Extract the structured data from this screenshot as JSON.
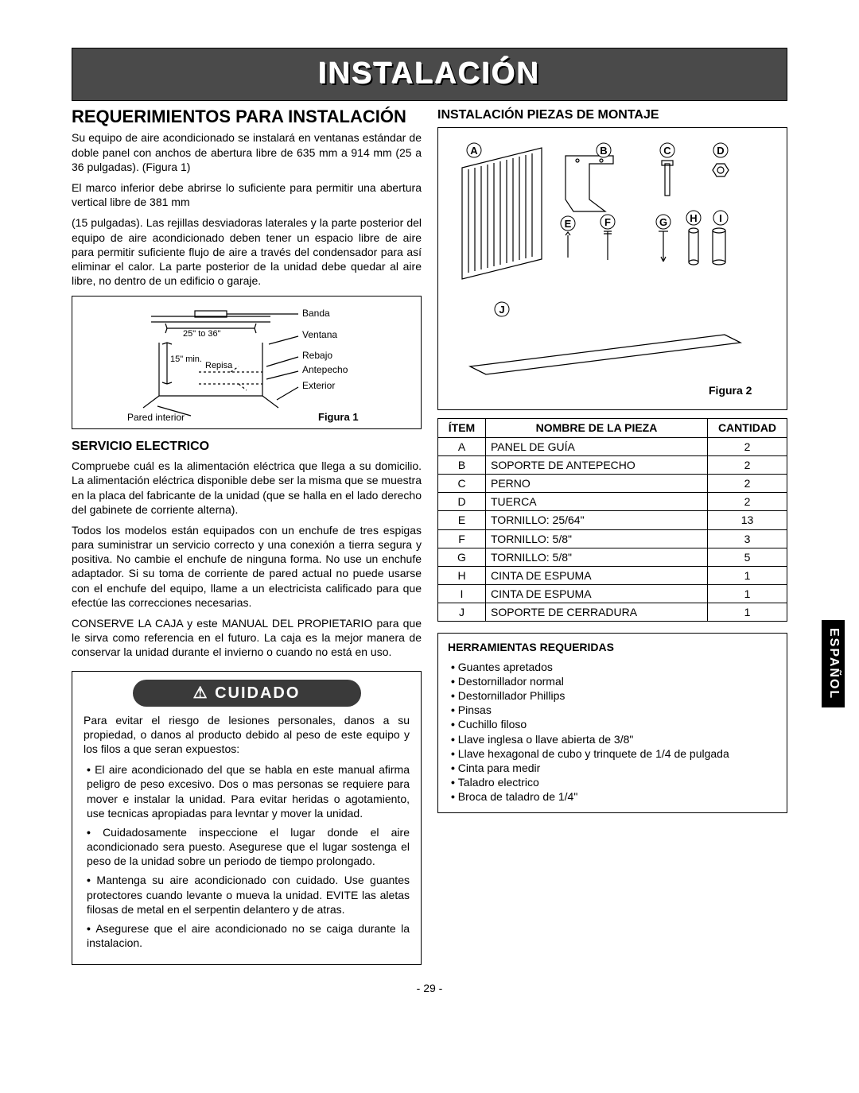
{
  "banner": "INSTALACIÓN",
  "left": {
    "h1": "REQUERIMIENTOS PARA INSTALACIÓN",
    "intro_p1": "Su equipo de aire acondicionado se instalará en ventanas estándar de doble panel con anchos de abertura libre de 635 mm a 914 mm (25 a 36 pulgadas). (Figura 1)",
    "intro_p2": "El marco inferior debe abrirse lo suficiente para permitir una abertura vertical libre de 381 mm",
    "intro_p3": "(15 pulgadas). Las rejillas desviadoras laterales y la parte posterior del equipo de aire acondicionado deben tener un espacio libre de aire para permitir suficiente flujo de aire a través del condensador para así eliminar el calor. La parte posterior de la unidad debe quedar al aire libre, no dentro de un edificio o garaje.",
    "fig1": {
      "labels": {
        "banda": "Banda",
        "width": "25\" to 36\"",
        "height": "15\" min.",
        "repisa": "Repisa",
        "ventana": "Ventana",
        "rebajo": "Rebajo",
        "antepecho": "Antepecho",
        "exterior": "Exterior",
        "pared": "Pared interior"
      },
      "caption": "Figura 1"
    },
    "serv_h2": "SERVICIO ELECTRICO",
    "serv_p1": "Compruebe cuál es la alimentación eléctrica que llega a su domicilio. La alimentación eléctrica disponible debe ser la misma que se muestra en la placa del fabricante de la unidad (que se halla en el lado derecho del gabinete de corriente alterna).",
    "serv_p2": "Todos los modelos están equipados con un enchufe de tres espigas para suministrar un servicio correcto y una conexión a tierra segura y positiva. No cambie el enchufe de ninguna forma. No use un enchufe adaptador. Si su toma de corriente de pared actual no puede usarse con el enchufe del equipo, llame a un electricista calificado para que efectúe las correcciones necesarias.",
    "serv_p3": "CONSERVE LA CAJA y este MANUAL DEL PROPIETARIO para que le sirva como referencia en el futuro. La caja es la mejor manera de conservar la unidad durante el invierno o cuando no está en uso.",
    "cuidado": {
      "title": "CUIDADO",
      "intro": "Para evitar el riesgo de lesiones personales, danos a su propiedad, o danos al producto debido al peso de este equipo y los filos a que seran expuestos:",
      "items": [
        "El aire acondicionado del que se habla en este manual afirma peligro de peso excesivo. Dos o mas personas se requiere para mover e instalar la unidad. Para evitar heridas o agotamiento, use tecnicas apropiadas para levntar y mover la unidad.",
        "Cuidadosamente inspeccione el lugar donde el aire acondicionado sera puesto. Asegurese que el lugar sostenga el peso de la unidad sobre un periodo de tiempo prolongado.",
        "Mantenga su aire acondicionado con cuidado. Use guantes protectores cuando levante o mueva la unidad. EVITE las aletas filosas de metal en el serpentin delantero y de atras.",
        "Asegurese que el aire acondicionado no se caiga durante la instalacion."
      ]
    }
  },
  "right": {
    "h2": "INSTALACIÓN PIEZAS DE MONTAJE",
    "fig2_caption": "Figura 2",
    "callouts": [
      "A",
      "B",
      "C",
      "D",
      "E",
      "F",
      "G",
      "H",
      "I",
      "J"
    ],
    "table": {
      "headers": [
        "ÍTEM",
        "NOMBRE DE LA PIEZA",
        "CANTIDAD"
      ],
      "rows": [
        [
          "A",
          "PANEL DE GUÍA",
          "2"
        ],
        [
          "B",
          "SOPORTE DE ANTEPECHO",
          "2"
        ],
        [
          "C",
          "PERNO",
          "2"
        ],
        [
          "D",
          "TUERCA",
          "2"
        ],
        [
          "E",
          "TORNILLO: 25/64\"",
          "13"
        ],
        [
          "F",
          "TORNILLO: 5/8\"",
          "3"
        ],
        [
          "G",
          "TORNILLO: 5/8\"",
          "5"
        ],
        [
          "H",
          "CINTA DE ESPUMA",
          "1"
        ],
        [
          "I",
          "CINTA DE ESPUMA",
          "1"
        ],
        [
          "J",
          "SOPORTE DE CERRADURA",
          "1"
        ]
      ]
    },
    "tools": {
      "title": "HERRAMIENTAS REQUERIDAS",
      "items": [
        "Guantes apretados",
        "Destornillador normal",
        "Destornillador Phillips",
        "Pinsas",
        "Cuchillo filoso",
        "Llave inglesa o llave abierta de 3/8\"",
        "Llave hexagonal de cubo y trinquete de 1/4 de pulgada",
        "Cinta para medir",
        "Taladro electrico",
        "Broca de taladro de 1/4\""
      ]
    }
  },
  "side_tab": "ESPAÑOL",
  "page_number": "- 29 -"
}
